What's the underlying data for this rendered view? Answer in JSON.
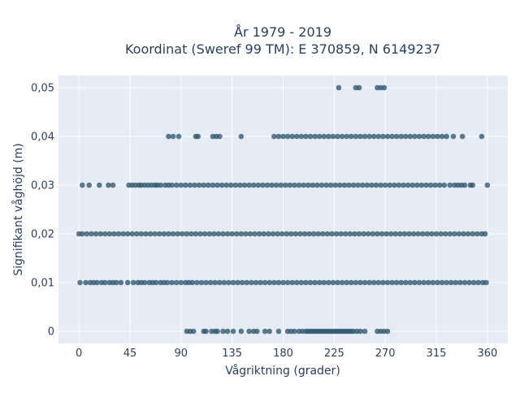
{
  "chart_data": {
    "type": "scatter",
    "title_lines": [
      "År 1979 - 2019",
      "Koordinat (Sweref 99 TM): E 370859, N 6149237"
    ],
    "xlabel": "Vågriktning (grader)",
    "ylabel": "Signifikant våghöjd (m)",
    "xlim": [
      -18,
      378
    ],
    "ylim": [
      -0.0025,
      0.0525
    ],
    "x_ticks": [
      0,
      45,
      90,
      135,
      180,
      225,
      270,
      315,
      360
    ],
    "x_tick_labels": [
      "0",
      "45",
      "90",
      "135",
      "180",
      "225",
      "270",
      "315",
      "360"
    ],
    "y_ticks": [
      0,
      0.01,
      0.02,
      0.03,
      0.04,
      0.05
    ],
    "y_tick_labels": [
      "0",
      "0,01",
      "0,02",
      "0,03",
      "0,04",
      "0,05"
    ],
    "grid": true,
    "marker_color": "#2e566e",
    "plot_background": "#e5ecf6",
    "series": [
      {
        "y": 0,
        "x": [
          95,
          98,
          101,
          110,
          112,
          117,
          120,
          122,
          127,
          131,
          136,
          143,
          150,
          154,
          157,
          164,
          168,
          176,
          184,
          187,
          190,
          194,
          197,
          200,
          202,
          204,
          206,
          208,
          210,
          212,
          214,
          216,
          218,
          220,
          222,
          224,
          226,
          228,
          230,
          232,
          234,
          236,
          238,
          240,
          242,
          245,
          248,
          252,
          263,
          266,
          269,
          272
        ]
      },
      {
        "y": 0.01,
        "x": [
          1,
          6,
          10,
          13,
          16,
          20,
          23,
          27,
          30,
          33,
          37,
          43,
          48,
          52,
          55,
          58,
          62,
          65,
          68,
          72,
          75,
          78,
          82,
          86,
          90,
          94,
          97,
          100,
          104,
          108,
          112,
          116,
          120,
          124,
          128,
          132,
          136,
          140,
          144,
          148,
          152,
          156,
          160,
          164,
          168,
          172,
          176,
          180,
          184,
          188,
          192,
          196,
          200,
          204,
          208,
          212,
          216,
          220,
          224,
          228,
          232,
          236,
          240,
          244,
          248,
          252,
          256,
          260,
          264,
          268,
          272,
          276,
          280,
          284,
          288,
          292,
          296,
          300,
          304,
          308,
          312,
          316,
          320,
          324,
          328,
          332,
          336,
          340,
          344,
          348,
          352,
          356,
          359
        ]
      },
      {
        "y": 0.02,
        "x": [
          0,
          3,
          7,
          11,
          15,
          19,
          23,
          27,
          31,
          35,
          39,
          43,
          47,
          51,
          55,
          59,
          63,
          67,
          71,
          75,
          79,
          83,
          87,
          91,
          95,
          99,
          103,
          107,
          111,
          115,
          119,
          123,
          127,
          131,
          135,
          139,
          143,
          147,
          151,
          155,
          159,
          163,
          167,
          171,
          175,
          179,
          183,
          187,
          191,
          195,
          199,
          203,
          207,
          211,
          215,
          219,
          223,
          227,
          231,
          235,
          239,
          243,
          247,
          251,
          255,
          259,
          263,
          267,
          271,
          275,
          279,
          283,
          287,
          291,
          295,
          299,
          303,
          307,
          311,
          315,
          319,
          323,
          327,
          331,
          335,
          339,
          343,
          347,
          351,
          355,
          358
        ]
      },
      {
        "y": 0.03,
        "x": [
          3,
          9,
          18,
          26,
          30,
          44,
          47,
          50,
          53,
          55,
          58,
          61,
          64,
          67,
          69,
          72,
          76,
          79,
          82,
          86,
          90,
          94,
          98,
          102,
          106,
          110,
          114,
          118,
          122,
          126,
          130,
          134,
          138,
          142,
          146,
          150,
          154,
          158,
          162,
          166,
          170,
          174,
          178,
          182,
          186,
          190,
          194,
          198,
          202,
          206,
          210,
          214,
          218,
          222,
          226,
          230,
          234,
          238,
          242,
          246,
          250,
          254,
          258,
          262,
          266,
          270,
          274,
          278,
          282,
          286,
          290,
          294,
          298,
          302,
          306,
          310,
          314,
          318,
          322,
          327,
          331,
          334,
          337,
          340,
          345,
          347,
          360
        ]
      },
      {
        "y": 0.04,
        "x": [
          79,
          83,
          88,
          103,
          105,
          118,
          121,
          124,
          143,
          172,
          176,
          180,
          184,
          188,
          192,
          196,
          200,
          204,
          208,
          212,
          216,
          220,
          224,
          228,
          232,
          236,
          240,
          244,
          248,
          252,
          256,
          260,
          264,
          268,
          272,
          276,
          280,
          284,
          288,
          292,
          296,
          300,
          304,
          308,
          312,
          316,
          320,
          324,
          330,
          338,
          355
        ]
      },
      {
        "y": 0.05,
        "x": [
          229,
          244,
          247,
          263,
          266,
          269
        ]
      }
    ]
  }
}
